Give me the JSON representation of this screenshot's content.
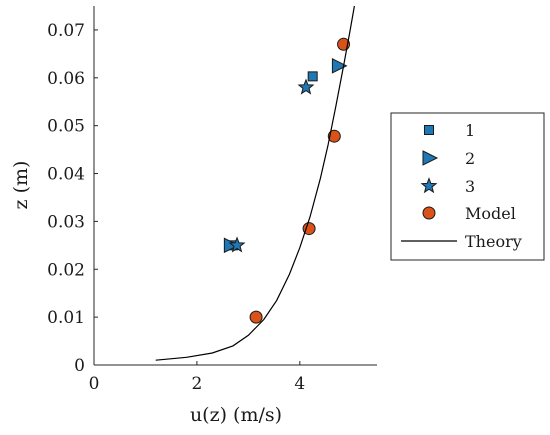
{
  "chart_data": {
    "type": "scatter",
    "xlabel": "u(z) (m/s)",
    "ylabel": "z (m)",
    "xlim": [
      0,
      5.5
    ],
    "ylim": [
      0,
      0.075
    ],
    "x_ticks": [
      0,
      2,
      4
    ],
    "x_tick_labels": [
      "0",
      "2",
      "4"
    ],
    "y_ticks": [
      0,
      0.01,
      0.02,
      0.03,
      0.04,
      0.05,
      0.06,
      0.07
    ],
    "y_tick_labels": [
      "0",
      "0.01",
      "0.02",
      "0.03",
      "0.04",
      "0.05",
      "0.06",
      "0.07"
    ],
    "grid": false,
    "legend_position": "right",
    "series": [
      {
        "name": "1",
        "marker": "square",
        "color": "#1f77b4",
        "points": [
          {
            "x": 2.7,
            "y": 0.025
          },
          {
            "x": 4.25,
            "y": 0.0603
          }
        ]
      },
      {
        "name": "2",
        "marker": "triangle-right",
        "color": "#1f77b4",
        "points": [
          {
            "x": 2.65,
            "y": 0.025
          },
          {
            "x": 4.75,
            "y": 0.0625
          }
        ]
      },
      {
        "name": "3",
        "marker": "star",
        "color": "#1f77b4",
        "points": [
          {
            "x": 2.78,
            "y": 0.025
          },
          {
            "x": 4.12,
            "y": 0.058
          }
        ]
      },
      {
        "name": "Model",
        "marker": "circle",
        "color": "#d95319",
        "points": [
          {
            "x": 3.15,
            "y": 0.01
          },
          {
            "x": 4.18,
            "y": 0.0285
          },
          {
            "x": 4.67,
            "y": 0.0478
          },
          {
            "x": 4.85,
            "y": 0.067
          }
        ]
      },
      {
        "name": "Theory",
        "type": "line",
        "color": "#000000",
        "points": [
          {
            "x": 1.2,
            "y": 0.001
          },
          {
            "x": 1.8,
            "y": 0.0016
          },
          {
            "x": 2.3,
            "y": 0.0025
          },
          {
            "x": 2.7,
            "y": 0.004
          },
          {
            "x": 3.0,
            "y": 0.0062
          },
          {
            "x": 3.3,
            "y": 0.0095
          },
          {
            "x": 3.55,
            "y": 0.0135
          },
          {
            "x": 3.8,
            "y": 0.019
          },
          {
            "x": 4.0,
            "y": 0.0245
          },
          {
            "x": 4.2,
            "y": 0.031
          },
          {
            "x": 4.4,
            "y": 0.039
          },
          {
            "x": 4.55,
            "y": 0.046
          },
          {
            "x": 4.7,
            "y": 0.054
          },
          {
            "x": 4.85,
            "y": 0.0625
          },
          {
            "x": 4.98,
            "y": 0.07
          },
          {
            "x": 5.06,
            "y": 0.075
          }
        ]
      }
    ]
  }
}
